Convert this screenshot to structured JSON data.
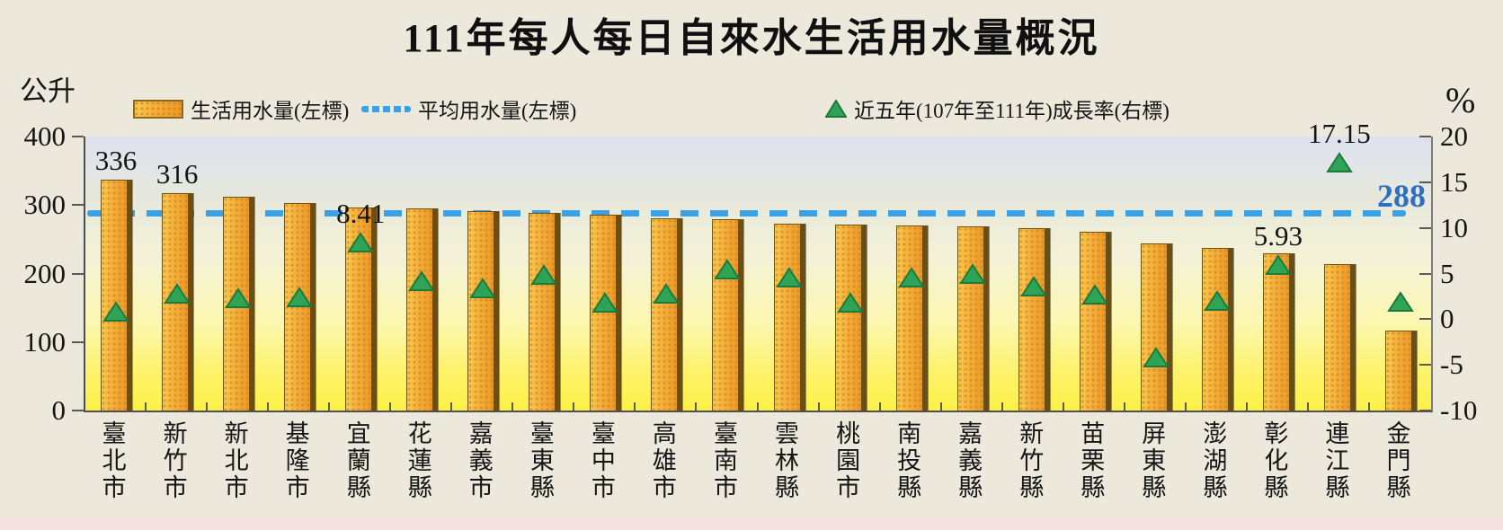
{
  "title": "111年每人每日自來水生活用水量概況",
  "legend": {
    "items": [
      {
        "label": "生活用水量(左標)",
        "marker": "bar-swatch"
      },
      {
        "label": "平均用水量(左標)",
        "marker": "dashed-line"
      },
      {
        "label": "近五年(107年至111年)成長率(右標)",
        "marker": "triangle"
      }
    ]
  },
  "colors": {
    "background": "#ece9dc",
    "bottom_strip": "#f7e2e3",
    "bar_fill": "#f4ae3c",
    "bar_shadow": "#6b4e15",
    "average_line": "#39a1e5",
    "average_label": "#2d6fc0",
    "growth_marker_fill": "#2fa356",
    "growth_marker_stroke": "#1c7a3a",
    "text": "#151515"
  },
  "chart_data": {
    "type": "bar",
    "title": "111年每人每日自來水生活用水量概況",
    "legend_position": "top",
    "grid": false,
    "left_axis": {
      "label": "公升",
      "min": 0,
      "max": 400,
      "ticks": [
        "400",
        "300",
        "200",
        "100",
        "0"
      ]
    },
    "right_axis": {
      "label": "%",
      "min": -10,
      "max": 20,
      "ticks": [
        "20",
        "15",
        "10",
        "5",
        "0",
        "-5",
        "-10"
      ]
    },
    "series_names": {
      "bars": "生活用水量(左標)",
      "average": "平均用水量(左標)",
      "markers": "近五年(107年至111年)成長率(右標)"
    },
    "average_line": {
      "value": 288,
      "label": "288"
    },
    "points": [
      {
        "name": "臺北市",
        "usage": 336,
        "growth": 0.8,
        "usage_label": "336"
      },
      {
        "name": "新竹市",
        "usage": 316,
        "growth": 2.8,
        "usage_label": "316"
      },
      {
        "name": "新北市",
        "usage": 311,
        "growth": 2.3
      },
      {
        "name": "基隆市",
        "usage": 302,
        "growth": 2.4
      },
      {
        "name": "宜蘭縣",
        "usage": 295,
        "growth": 8.41,
        "growth_label": "8.41"
      },
      {
        "name": "花蓮縣",
        "usage": 294,
        "growth": 4.2
      },
      {
        "name": "嘉義市",
        "usage": 290,
        "growth": 3.4
      },
      {
        "name": "臺東縣",
        "usage": 287,
        "growth": 4.9
      },
      {
        "name": "臺中市",
        "usage": 285,
        "growth": 1.8
      },
      {
        "name": "高雄市",
        "usage": 280,
        "growth": 2.8
      },
      {
        "name": "臺南市",
        "usage": 278,
        "growth": 5.4
      },
      {
        "name": "雲林縣",
        "usage": 272,
        "growth": 4.6
      },
      {
        "name": "桃園市",
        "usage": 270,
        "growth": 1.8
      },
      {
        "name": "南投縣",
        "usage": 269,
        "growth": 4.6
      },
      {
        "name": "嘉義縣",
        "usage": 267,
        "growth": 5.0
      },
      {
        "name": "新竹縣",
        "usage": 265,
        "growth": 3.6
      },
      {
        "name": "苗栗縣",
        "usage": 260,
        "growth": 2.7
      },
      {
        "name": "屏東縣",
        "usage": 242,
        "growth": -4.2
      },
      {
        "name": "澎湖縣",
        "usage": 236,
        "growth": 2.0
      },
      {
        "name": "彰化縣",
        "usage": 228,
        "growth": 5.93,
        "growth_label": "5.93"
      },
      {
        "name": "連江縣",
        "usage": 213,
        "growth": 17.15,
        "growth_label": "17.15"
      },
      {
        "name": "金門縣",
        "usage": 115,
        "growth": 1.9
      }
    ]
  }
}
